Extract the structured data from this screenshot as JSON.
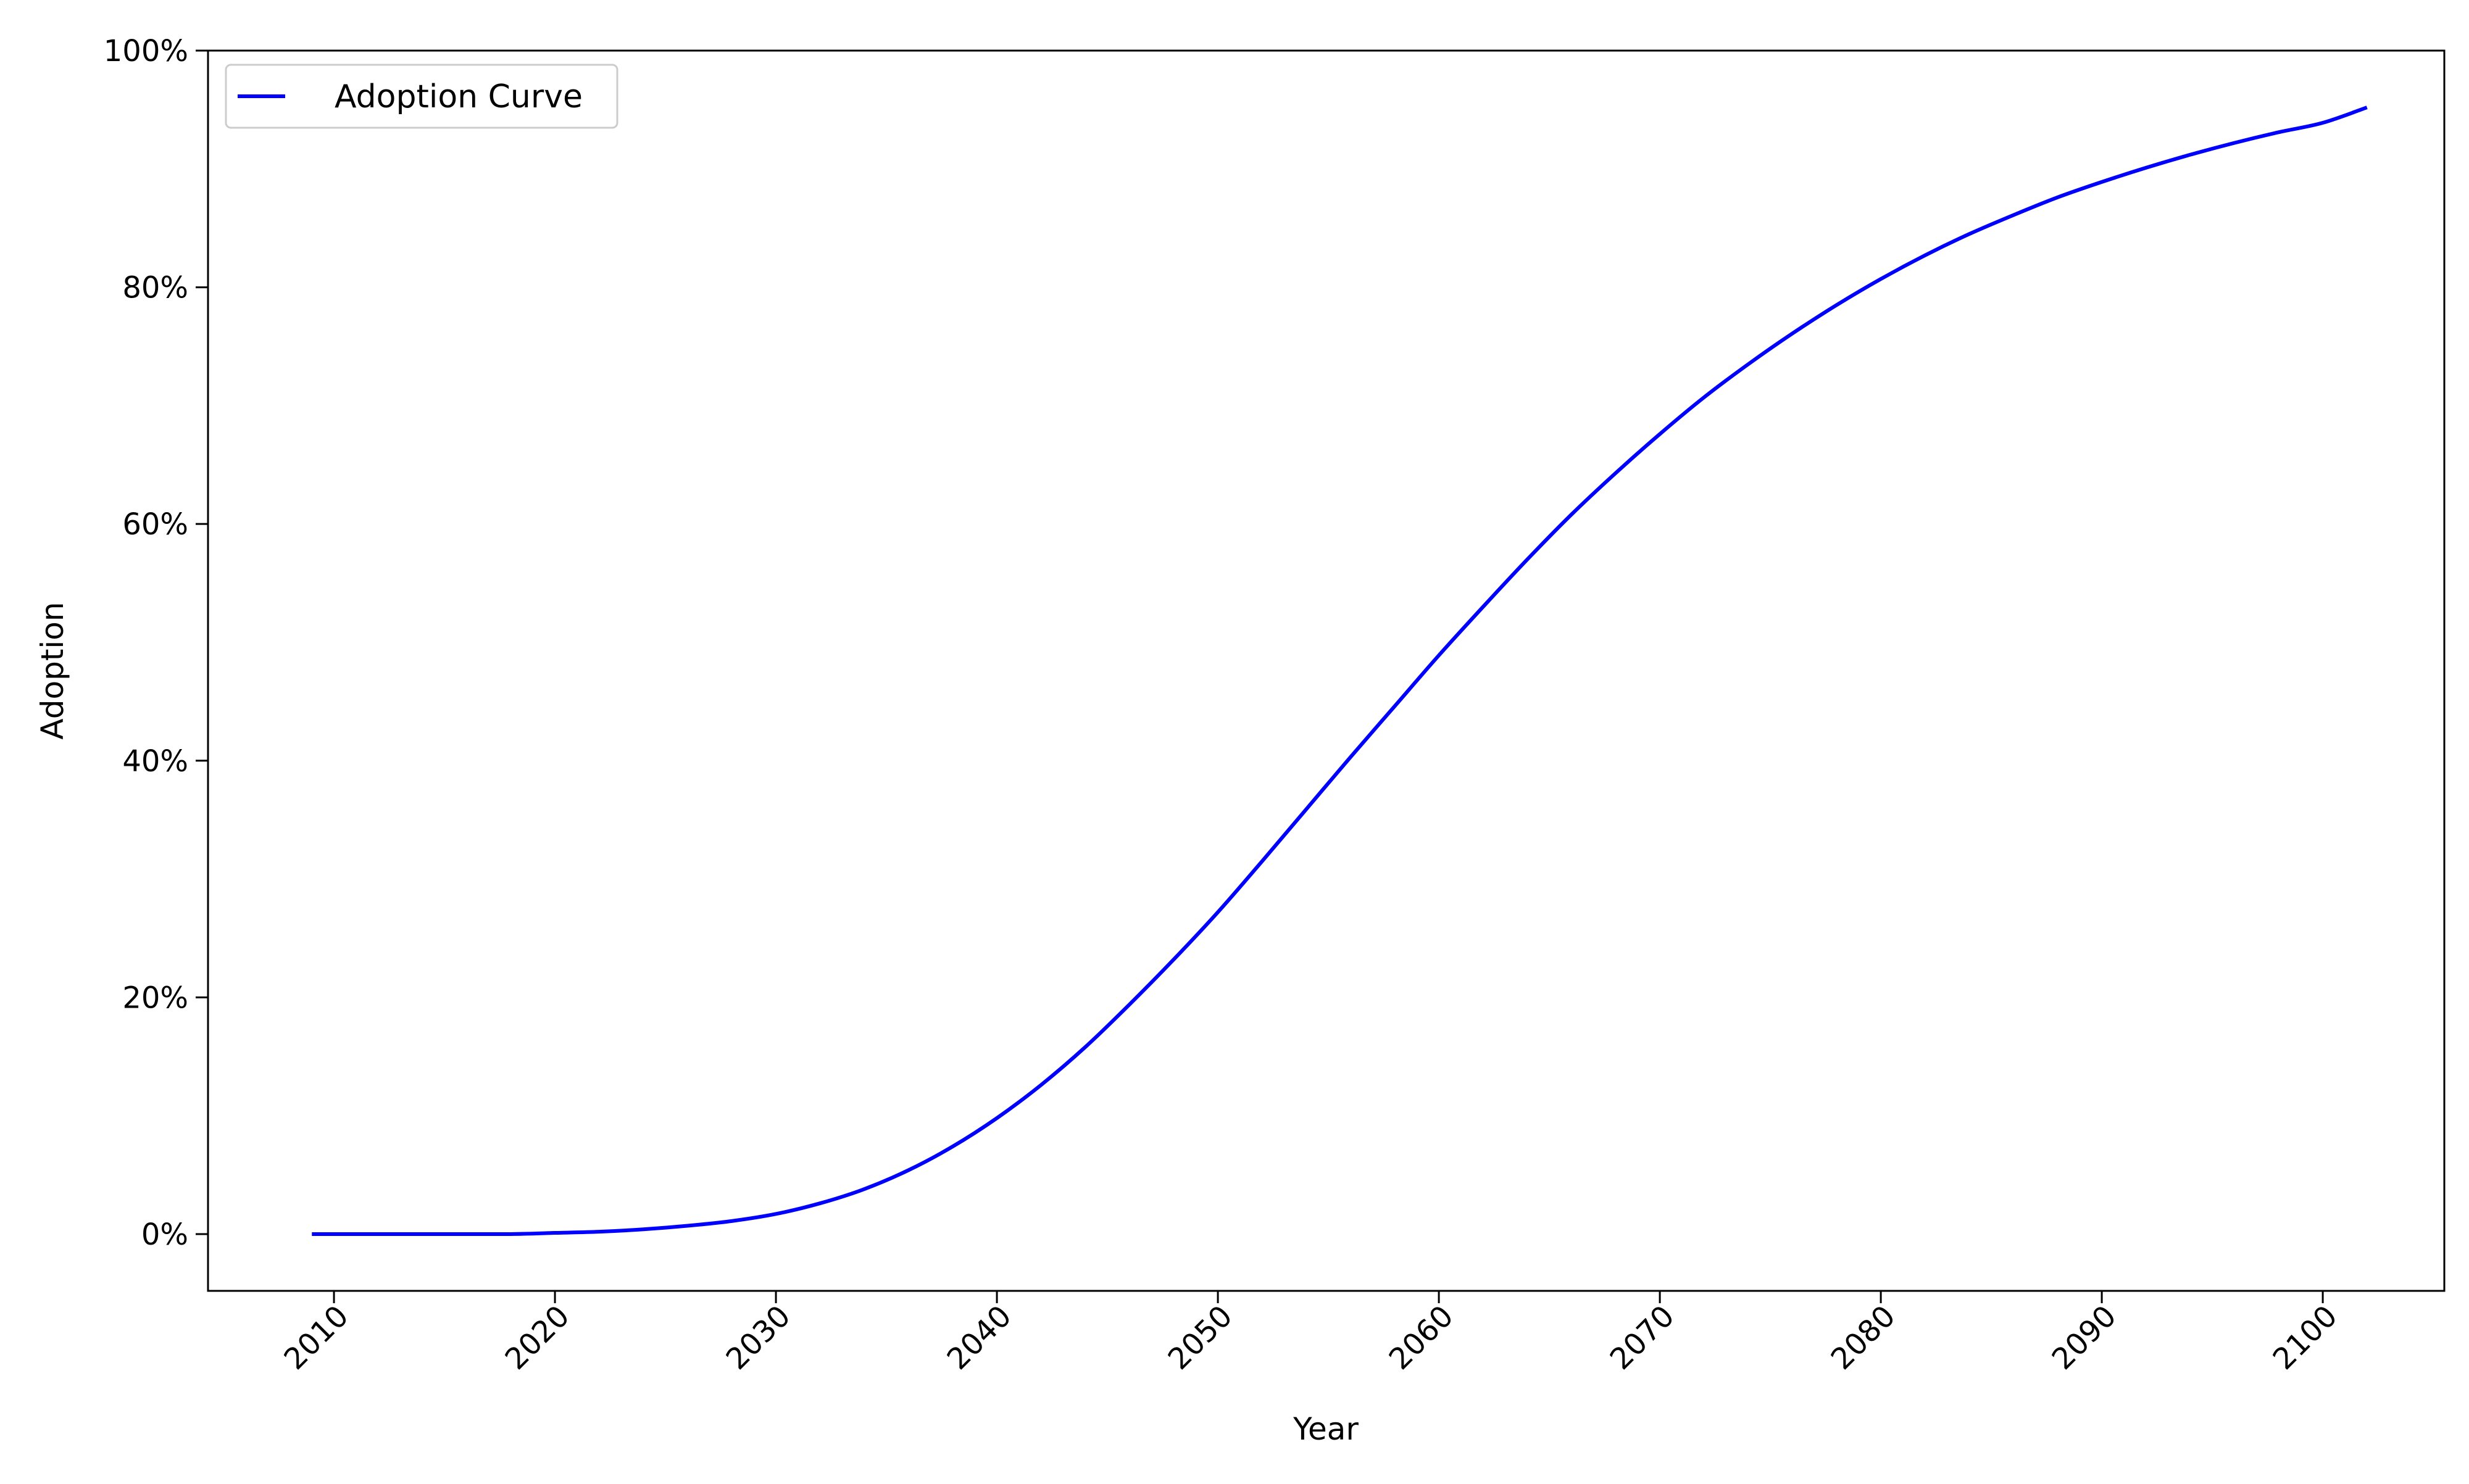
{
  "chart_data": {
    "type": "line",
    "title": "",
    "xlabel": "Year",
    "ylabel": "Adoption",
    "xlim": [
      2004.3,
      2105.5
    ],
    "ylim": [
      -0.048,
      1.0
    ],
    "x_ticks": [
      2010,
      2020,
      2030,
      2040,
      2050,
      2060,
      2070,
      2080,
      2090,
      2100
    ],
    "x_tick_labels": [
      "2010",
      "2020",
      "2030",
      "2040",
      "2050",
      "2060",
      "2070",
      "2080",
      "2090",
      "2100"
    ],
    "y_ticks": [
      0,
      0.2,
      0.4,
      0.6,
      0.8,
      1.0
    ],
    "y_tick_labels": [
      "0%",
      "20%",
      "40%",
      "60%",
      "80%",
      "100%"
    ],
    "grid": false,
    "legend": {
      "placement": "upper-left"
    },
    "series": [
      {
        "name": "Adoption Curve",
        "color": "#0000ff",
        "x": [
          2009,
          2012,
          2015,
          2018,
          2020,
          2022,
          2024,
          2026,
          2028,
          2030,
          2032,
          2034,
          2036,
          2038,
          2040,
          2042,
          2044,
          2046,
          2048,
          2050,
          2052,
          2054,
          2056,
          2058,
          2060,
          2062,
          2064,
          2066,
          2068,
          2070,
          2072,
          2074,
          2076,
          2078,
          2080,
          2082,
          2084,
          2086,
          2088,
          2090,
          2092,
          2094,
          2096,
          2098,
          2100,
          2102
        ],
        "y": [
          0.0,
          0.0,
          0.0,
          0.0,
          0.001,
          0.002,
          0.004,
          0.007,
          0.011,
          0.017,
          0.026,
          0.038,
          0.054,
          0.074,
          0.098,
          0.126,
          0.158,
          0.194,
          0.232,
          0.272,
          0.315,
          0.359,
          0.403,
          0.446,
          0.489,
          0.53,
          0.57,
          0.608,
          0.643,
          0.676,
          0.707,
          0.735,
          0.761,
          0.785,
          0.807,
          0.827,
          0.845,
          0.861,
          0.876,
          0.889,
          0.901,
          0.912,
          0.922,
          0.931,
          0.939,
          0.952
        ]
      }
    ]
  }
}
